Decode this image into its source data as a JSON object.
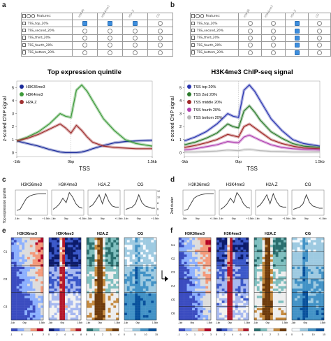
{
  "panels": {
    "a": "a",
    "b": "b",
    "c": "c",
    "d": "d",
    "e": "e",
    "f": "f"
  },
  "tables": {
    "features_label": "Features:",
    "columns": [
      "H3K36",
      "H3K4me3",
      "H2A.Z",
      "CG"
    ],
    "a": {
      "rows": [
        "TSS_top_20%",
        "TSS_second_20%",
        "TSS_third_20%",
        "TSS_fourth_20%",
        "TSS_bottom_20%"
      ],
      "checked": [
        [
          true,
          true,
          true,
          false
        ],
        [
          false,
          false,
          false,
          false
        ],
        [
          false,
          false,
          false,
          false
        ],
        [
          false,
          false,
          false,
          false
        ],
        [
          false,
          false,
          false,
          false
        ]
      ]
    },
    "b": {
      "rows": [
        "TSS_top_20%",
        "TSS_second_20%",
        "TSS_third_20%",
        "TSS_fourth_20%",
        "TSS_bottom_20%"
      ],
      "checked": [
        [
          false,
          false,
          true,
          false
        ],
        [
          false,
          false,
          true,
          false
        ],
        [
          false,
          false,
          true,
          false
        ],
        [
          false,
          false,
          true,
          false
        ],
        [
          false,
          false,
          true,
          false
        ]
      ]
    }
  },
  "chart_data": [
    {
      "type": "line",
      "title": "Top expression quintile",
      "ylabel": "z-scored ChIP signal",
      "xlabel": "TSS",
      "x_ticks": [
        "-1kb",
        "0bp",
        "1.5kb"
      ],
      "y_ticks": [
        "0",
        "1",
        "2",
        "3",
        "4",
        "5"
      ],
      "ylim": [
        -0.3,
        5.5
      ],
      "x": [
        -1000,
        -800,
        -600,
        -400,
        -200,
        -100,
        0,
        100,
        200,
        300,
        400,
        600,
        800,
        1000,
        1200,
        1500
      ],
      "series": [
        {
          "name": "H3K36me3",
          "color": "#1a2a9a",
          "values": [
            0.9,
            0.7,
            0.5,
            0.25,
            0.05,
            0.0,
            0.0,
            0.0,
            0.05,
            0.15,
            0.3,
            0.55,
            0.75,
            0.85,
            0.9,
            0.95
          ]
        },
        {
          "name": "H3K4me3",
          "color": "#3d9a3a",
          "values": [
            0.9,
            1.2,
            1.6,
            2.2,
            3.0,
            2.8,
            2.7,
            4.8,
            5.2,
            4.7,
            4.0,
            2.6,
            1.7,
            1.0,
            0.7,
            0.5
          ]
        },
        {
          "name": "H2A.Z",
          "color": "#a03030",
          "values": [
            0.9,
            1.1,
            1.4,
            1.8,
            2.2,
            1.9,
            1.5,
            2.1,
            1.7,
            1.2,
            0.8,
            0.5,
            0.4,
            0.35,
            0.3,
            0.3
          ]
        }
      ],
      "legend": "top-left"
    },
    {
      "type": "line",
      "title": "H3K4me3 ChIP-seq signal",
      "ylabel": "z-scored ChIP signal",
      "xlabel": "TSS",
      "x_ticks": [
        "-1kb",
        "0bp",
        "1.5kb"
      ],
      "y_ticks": [
        "0",
        "1",
        "2",
        "3",
        "4",
        "5"
      ],
      "ylim": [
        -0.3,
        5.5
      ],
      "x": [
        -1000,
        -800,
        -600,
        -400,
        -200,
        -100,
        0,
        100,
        200,
        300,
        400,
        600,
        800,
        1000,
        1200,
        1500
      ],
      "series": [
        {
          "name": "TSS top 20%",
          "color": "#2a35b0",
          "values": [
            0.9,
            1.2,
            1.6,
            2.2,
            3.0,
            2.8,
            2.7,
            4.8,
            5.2,
            4.7,
            4.0,
            2.6,
            1.7,
            1.0,
            0.7,
            0.5
          ]
        },
        {
          "name": "TSS 2nd 20%",
          "color": "#2c7a2c",
          "values": [
            0.6,
            0.8,
            1.1,
            1.5,
            2.2,
            2.0,
            1.9,
            3.2,
            3.6,
            3.1,
            2.5,
            1.6,
            1.1,
            0.7,
            0.5,
            0.4
          ]
        },
        {
          "name": "TSS middle 20%",
          "color": "#a02828",
          "values": [
            0.4,
            0.55,
            0.75,
            1.0,
            1.4,
            1.3,
            1.2,
            2.0,
            2.2,
            1.9,
            1.6,
            1.0,
            0.7,
            0.5,
            0.35,
            0.3
          ]
        },
        {
          "name": "TSS fourth 20%",
          "color": "#b040b0",
          "values": [
            0.2,
            0.3,
            0.45,
            0.6,
            0.85,
            0.8,
            0.75,
            1.2,
            1.35,
            1.15,
            0.95,
            0.6,
            0.4,
            0.3,
            0.25,
            0.2
          ]
        },
        {
          "name": "TSS bottom 20%",
          "color": "#b8b8b8",
          "values": [
            0.05,
            0.05,
            0.08,
            0.12,
            0.2,
            0.18,
            0.15,
            0.22,
            0.25,
            0.2,
            0.15,
            0.1,
            0.08,
            0.05,
            0.05,
            0.05
          ]
        }
      ],
      "legend": "top-left"
    }
  ],
  "mini_plots": {
    "c": {
      "ylabel": "Top expression quintile",
      "titles": [
        "H3K36me3",
        "H3K4me3",
        "H2A.Z",
        "CG"
      ],
      "x_ticks": [
        "-1kb",
        "0bp",
        "+1.5kb"
      ],
      "y_ticks": [
        "12",
        "10",
        "8",
        "6",
        "4"
      ]
    },
    "d": {
      "ylabel": "2nd cluster",
      "titles": [
        "H3K36me3",
        "H3K4me3",
        "H2A.Z",
        "CG"
      ],
      "x_ticks": [
        "-1kb",
        "0bp",
        "+1.5kb"
      ]
    }
  },
  "heatmaps": {
    "e": {
      "titles": [
        "H3K36me3",
        "H3K4me3",
        "H2A.Z",
        "CG"
      ],
      "clusters": [
        "C1",
        "C2",
        "C3"
      ],
      "x_ticks": [
        "-1kb",
        "0bp",
        "1.5kb"
      ],
      "colorbars": [
        [
          "-1",
          "0",
          "1",
          "2"
        ],
        [
          "0",
          "2",
          "4",
          "6",
          "8"
        ],
        [
          "0",
          "1",
          "2",
          "3",
          "4"
        ],
        [
          "0",
          "5",
          "10",
          "15"
        ]
      ]
    },
    "f": {
      "titles": [
        "H3K36me3",
        "H3K4me3",
        "H2A.Z",
        "CG"
      ],
      "clusters": [
        "C1",
        "C2",
        "C3",
        "C4",
        "C5",
        "C6"
      ],
      "x_ticks": [
        "-1kb",
        "0bp",
        "1.5kb"
      ],
      "colorbars": [
        [
          "-1",
          "0",
          "1",
          "2",
          "3"
        ],
        [
          "0",
          "2",
          "4",
          "6",
          "8"
        ],
        [
          "0",
          "1",
          "2",
          "3",
          "4"
        ],
        [
          "0",
          "5",
          "10",
          "15"
        ]
      ]
    }
  }
}
